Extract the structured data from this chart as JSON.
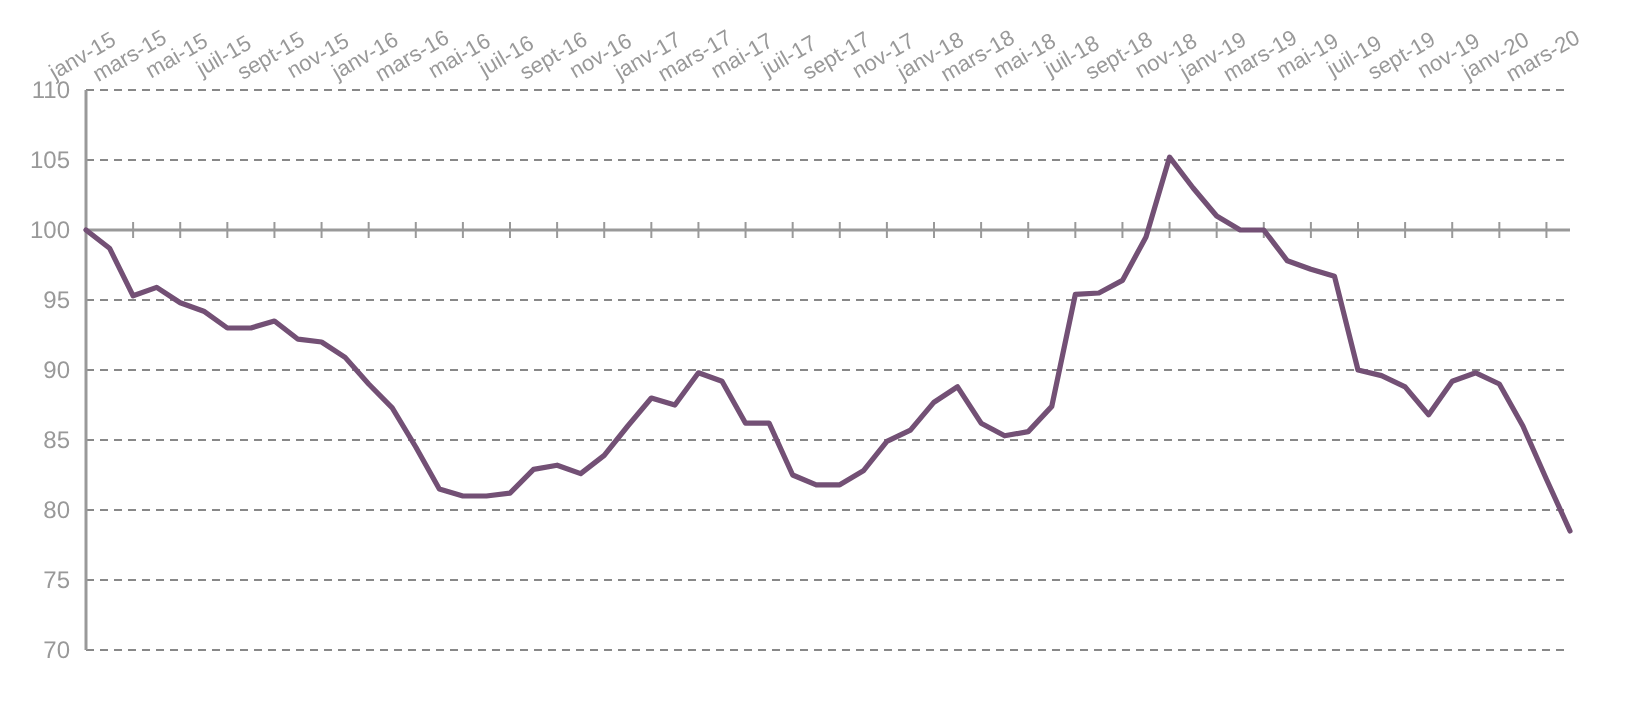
{
  "chart_data": {
    "type": "line",
    "categories": [
      "janv-15",
      null,
      "mars-15",
      null,
      "mai-15",
      null,
      "juil-15",
      null,
      "sept-15",
      null,
      "nov-15",
      null,
      "janv-16",
      null,
      "mars-16",
      null,
      "mai-16",
      null,
      "juil-16",
      null,
      "sept-16",
      null,
      "nov-16",
      null,
      "janv-17",
      null,
      "mars-17",
      null,
      "mai-17",
      null,
      "juil-17",
      null,
      "sept-17",
      null,
      "nov-17",
      null,
      "janv-18",
      null,
      "mars-18",
      null,
      "mai-18",
      null,
      "juil-18",
      null,
      "sept-18",
      null,
      "nov-18",
      null,
      "janv-19",
      null,
      "mars-19",
      null,
      "mai-19",
      null,
      "juil-19",
      null,
      "sept-19",
      null,
      "nov-19",
      null,
      "janv-20",
      null,
      "mars-20",
      null
    ],
    "series": [
      {
        "color": "#735075",
        "values": [
          100,
          98.7,
          95.3,
          95.9,
          94.8,
          94.2,
          93,
          93,
          93.5,
          92.2,
          92,
          90.9,
          89,
          87.3,
          84.5,
          81.5,
          81,
          81,
          81.2,
          82.9,
          83.2,
          82.6,
          83.9,
          86,
          88,
          87.5,
          89.8,
          89.2,
          86.2,
          86.2,
          82.5,
          81.8,
          81.8,
          82.8,
          84.9,
          85.7,
          87.7,
          88.8,
          86.2,
          85.3,
          85.6,
          87.4,
          95.4,
          95.5,
          96.4,
          99.5,
          105.2,
          103,
          101,
          100,
          100,
          97.8,
          97.2,
          96.7,
          90,
          89.6,
          88.8,
          86.8,
          89.2,
          89.8,
          89,
          86,
          82.2,
          78.5
        ]
      }
    ],
    "ylim": [
      70,
      110
    ],
    "yticks": [
      70,
      75,
      80,
      85,
      90,
      95,
      100,
      105,
      110
    ],
    "grid": "y",
    "marker": "none",
    "line_style": "solid",
    "ref_lines": [
      {
        "axis": "y",
        "value": 100,
        "color": "#999999",
        "line_style": "solid"
      }
    ]
  }
}
